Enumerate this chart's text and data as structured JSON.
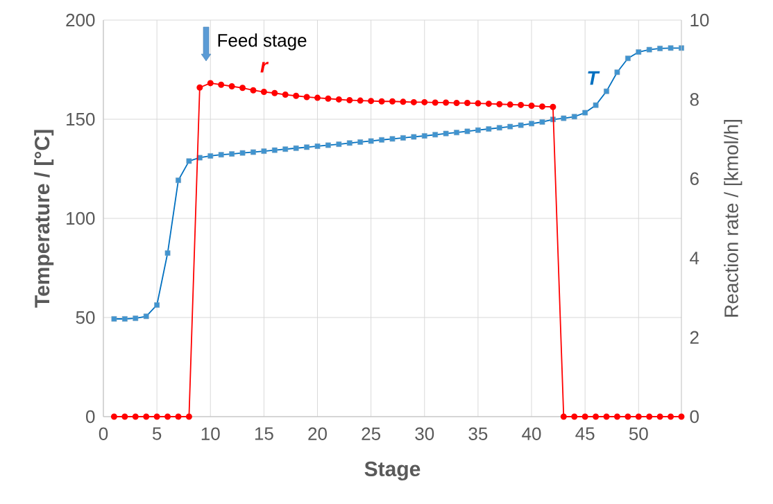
{
  "chart_data": {
    "type": "line",
    "xlabel": "Stage",
    "ylabel": "Temperature / [°C]",
    "y2label": "Reaction rate / [kmol/h]",
    "x": [
      1,
      2,
      3,
      4,
      5,
      6,
      7,
      8,
      9,
      10,
      11,
      12,
      13,
      14,
      15,
      16,
      17,
      18,
      19,
      20,
      21,
      22,
      23,
      24,
      25,
      26,
      27,
      28,
      29,
      30,
      31,
      32,
      33,
      34,
      35,
      36,
      37,
      38,
      39,
      40,
      41,
      42,
      43,
      44,
      45,
      46,
      47,
      48,
      49,
      50,
      51,
      52,
      53,
      54
    ],
    "series": [
      {
        "name": "T",
        "color": "#0070c0",
        "marker": "square",
        "values": [
          49.3,
          49.3,
          49.6,
          50.6,
          56.3,
          82.5,
          119.2,
          128.9,
          130.6,
          131.5,
          132.1,
          132.5,
          133,
          133.4,
          133.9,
          134.4,
          134.9,
          135.4,
          135.9,
          136.4,
          136.9,
          137.4,
          138,
          138.5,
          139,
          139.6,
          140.1,
          140.6,
          141.1,
          141.6,
          142.2,
          142.8,
          143.3,
          143.9,
          144.5,
          145.1,
          145.7,
          146.3,
          147,
          147.8,
          148.6,
          149.9,
          150.5,
          151.3,
          153.3,
          157.1,
          164.1,
          173.7,
          180.7,
          183.9,
          185.1,
          185.7,
          185.9,
          185.9
        ]
      },
      {
        "name": "r",
        "color": "#ff0000",
        "marker": "circle",
        "axis": "y2",
        "values": [
          0,
          0,
          0,
          0,
          0,
          0,
          0,
          0,
          8.3,
          8.41,
          8.37,
          8.33,
          8.29,
          8.23,
          8.19,
          8.16,
          8.12,
          8.09,
          8.06,
          8.04,
          8.02,
          8.0,
          7.98,
          7.97,
          7.96,
          7.95,
          7.95,
          7.94,
          7.93,
          7.93,
          7.92,
          7.92,
          7.91,
          7.91,
          7.9,
          7.89,
          7.88,
          7.87,
          7.86,
          7.84,
          7.82,
          7.81,
          0,
          0,
          0,
          0,
          0,
          0,
          0,
          0,
          0,
          0,
          0,
          0
        ]
      }
    ],
    "xlim": [
      0,
      54
    ],
    "xticks": [
      0,
      5,
      10,
      15,
      20,
      25,
      30,
      35,
      40,
      45,
      50
    ],
    "ylim": [
      0,
      200
    ],
    "yticks": [
      0,
      50,
      100,
      150,
      200
    ],
    "y2lim": [
      0,
      10
    ],
    "y2ticks": [
      0,
      2,
      4,
      6,
      8,
      10
    ],
    "annotations": [
      "Feed stage"
    ],
    "grid": true,
    "legend": false,
    "line_style": "solid"
  }
}
